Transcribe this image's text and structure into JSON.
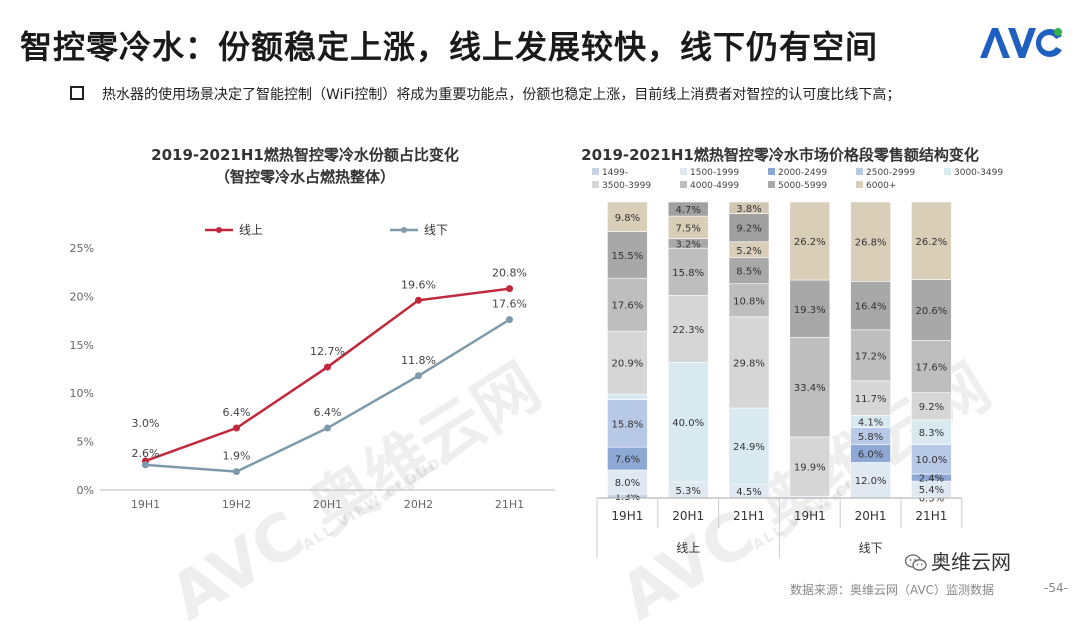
{
  "header": {
    "title": "智控零冷水：份额稳定上涨，线上发展较快，线下仍有空间",
    "logo_text": "AVC",
    "bullet": "热水器的使用场景决定了智能控制（WiFi控制）将成为重要功能点，份额也稳定上涨，目前线上消费者对智控的认可度比线下高；"
  },
  "watermark": {
    "main": "AVC 奥维云网",
    "sub": "ALL VIEW CLOUD"
  },
  "footer": {
    "wechat": "奥维云网",
    "source": "数据来源：奥维云网（AVC）监测数据",
    "page": "-54-"
  },
  "colors": {
    "online": "#C0283C",
    "offline": "#7E9AAA",
    "seg": [
      "#C9D3E6",
      "#E0E8F2",
      "#8EA8D6",
      "#B8C9E8",
      "#D8EAF0",
      "#D6D6D6",
      "#BEBEBE",
      "#A8A8A8",
      "#D9CEB8"
    ]
  },
  "chart_data": [
    {
      "type": "line",
      "title": "2019-2021H1燃热智控零冷水份额占比变化",
      "subtitle": "（智控零冷水占燃热整体）",
      "categories": [
        "19H1",
        "19H2",
        "20H1",
        "20H2",
        "21H1"
      ],
      "y_ticks": [
        "0%",
        "5%",
        "10%",
        "15%",
        "20%",
        "25%"
      ],
      "ylim": [
        0,
        25
      ],
      "legend_position": "top",
      "series": [
        {
          "name": "线上",
          "values": [
            3.0,
            6.4,
            12.7,
            19.6,
            20.8
          ],
          "labels": [
            "3.0%",
            "6.4%",
            "12.7%",
            "19.6%",
            "20.8%"
          ]
        },
        {
          "name": "线下",
          "values": [
            2.6,
            1.9,
            6.4,
            11.8,
            17.6
          ],
          "labels": [
            "2.6%",
            "1.9%",
            "6.4%",
            "11.8%",
            "17.6%"
          ]
        }
      ]
    },
    {
      "type": "bar",
      "stacked": true,
      "title": "2019-2021H1燃热智控零冷水市场价格段零售额结构变化",
      "categories": [
        "19H1",
        "20H1",
        "21H1",
        "19H1",
        "20H1",
        "21H1"
      ],
      "groups": [
        "线上",
        "线下"
      ],
      "legend": [
        "1499-",
        "1500-1999",
        "2000-2499",
        "2500-2999",
        "3000-3499",
        "3500-3999",
        "4000-4999",
        "5000-5999",
        "6000+"
      ],
      "legend_position": "top",
      "series": [
        {
          "name": "1499-",
          "values": [
            1.3,
            0.0,
            0.0,
            0.0,
            0.0,
            0.3
          ]
        },
        {
          "name": "1500-1999",
          "values": [
            8.0,
            5.3,
            4.5,
            0.6,
            12.0,
            5.4
          ]
        },
        {
          "name": "2000-2499",
          "values": [
            7.6,
            0.0,
            0.0,
            0.0,
            6.0,
            2.4
          ]
        },
        {
          "name": "2500-2999",
          "values": [
            15.8,
            0.0,
            0.0,
            0.0,
            5.8,
            10.0
          ]
        },
        {
          "name": "3000-3499",
          "values": [
            1.8,
            40.0,
            24.9,
            0.0,
            4.1,
            8.3
          ]
        },
        {
          "name": "3500-3999",
          "values": [
            20.9,
            22.3,
            29.8,
            19.9,
            11.7,
            9.2
          ]
        },
        {
          "name": "4000-4999",
          "values": [
            17.6,
            15.8,
            10.8,
            33.4,
            17.2,
            17.6
          ]
        },
        {
          "name": "5000-5999",
          "values": [
            15.5,
            3.2,
            8.5,
            19.3,
            16.4,
            20.6
          ]
        },
        {
          "name": "6000+",
          "values": [
            9.8,
            7.5,
            5.2,
            26.2,
            26.8,
            26.2
          ]
        }
      ],
      "extra_segments": [
        {
          "name": "",
          "values": [
            0,
            4.7,
            9.2,
            0,
            0,
            0
          ]
        },
        {
          "name": "",
          "values": [
            0,
            0,
            3.8,
            0,
            0,
            0
          ]
        }
      ],
      "labels": [
        [
          "1.3%",
          "8.0%",
          "7.6%",
          "15.8%",
          "",
          "20.9%",
          "17.6%",
          "15.5%",
          "9.8%"
        ],
        [
          "",
          "5.3%",
          "",
          "",
          "40.0%",
          "22.3%",
          "15.8%",
          "3.2%",
          "7.5%",
          "4.7%"
        ],
        [
          "",
          "4.5%",
          "",
          "",
          "24.9%",
          "29.8%",
          "10.8%",
          "8.5%",
          "5.2%",
          "9.2%",
          "3.8%"
        ],
        [
          "",
          "",
          "",
          "",
          "",
          "19.9%",
          "33.4%",
          "19.3%",
          "26.2%"
        ],
        [
          "",
          "12.0%",
          "6.0%",
          "5.8%",
          "4.1%",
          "11.7%",
          "17.2%",
          "16.4%",
          "26.8%"
        ],
        [
          "0.3%",
          "5.4%",
          "2.4%",
          "10.0%",
          "8.3%",
          "9.2%",
          "17.6%",
          "20.6%",
          "26.2%"
        ]
      ]
    }
  ]
}
